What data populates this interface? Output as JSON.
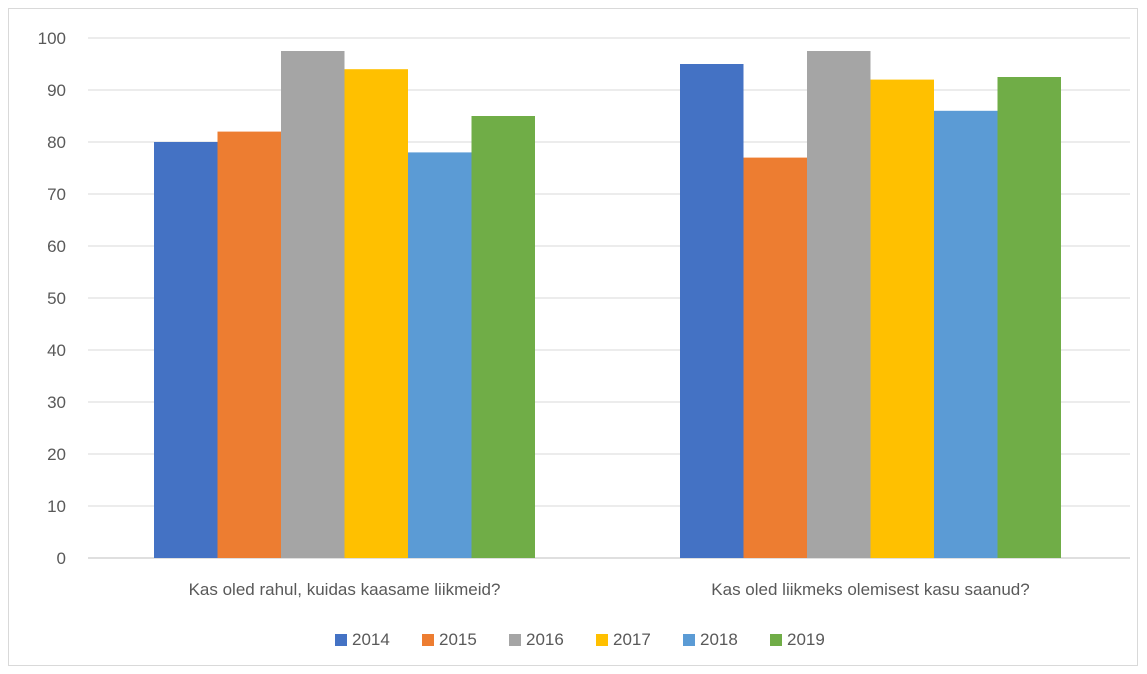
{
  "chart_data": {
    "type": "bar",
    "title": "",
    "xlabel": "",
    "ylabel": "",
    "ylim": [
      0,
      100
    ],
    "yticks": [
      0,
      10,
      20,
      30,
      40,
      50,
      60,
      70,
      80,
      90,
      100
    ],
    "grid": true,
    "legend_position": "bottom",
    "categories": [
      "Kas oled rahul, kuidas kaasame liikmeid?",
      "Kas oled liikmeks olemisest kasu saanud?"
    ],
    "series": [
      {
        "name": "2014",
        "color": "#4472c4",
        "values": [
          80,
          95
        ]
      },
      {
        "name": "2015",
        "color": "#ed7d31",
        "values": [
          82,
          77
        ]
      },
      {
        "name": "2016",
        "color": "#a5a5a5",
        "values": [
          97.5,
          97.5
        ]
      },
      {
        "name": "2017",
        "color": "#ffc000",
        "values": [
          94,
          92
        ]
      },
      {
        "name": "2018",
        "color": "#5b9bd5",
        "values": [
          78,
          86
        ]
      },
      {
        "name": "2019",
        "color": "#70ad47",
        "values": [
          85,
          92.5
        ]
      }
    ]
  }
}
